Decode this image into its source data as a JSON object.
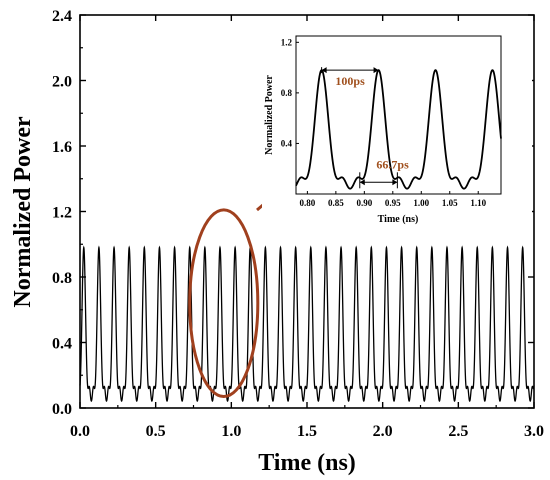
{
  "chart_data": [
    {
      "type": "line",
      "name": "main",
      "xlabel": "Time (ns)",
      "ylabel": "Normalized Power",
      "xlim": [
        0.0,
        3.0
      ],
      "ylim": [
        0.0,
        2.4
      ],
      "x_ticks": [
        "0.0",
        "0.5",
        "1.0",
        "1.5",
        "2.0",
        "2.5",
        "3.0"
      ],
      "y_ticks": [
        "0.0",
        "0.4",
        "0.8",
        "1.2",
        "1.6",
        "2.0",
        "2.4"
      ],
      "pulse_period_ns": 0.1,
      "first_peak_ns": 0.025,
      "peak_value": 0.98,
      "sidelobe_value": 0.12,
      "grid": false,
      "highlight": {
        "shape": "ellipse",
        "color": "#a0401e",
        "x_center": 0.95,
        "x_range": [
          0.73,
          1.18
        ],
        "y_range": [
          0.07,
          1.21
        ]
      }
    },
    {
      "type": "line",
      "name": "inset",
      "xlabel": "Time (ns)",
      "ylabel": "Normalized Power",
      "xlim": [
        0.78,
        1.14
      ],
      "ylim": [
        0.0,
        1.25
      ],
      "x_ticks": [
        "0.80",
        "0.85",
        "0.90",
        "0.95",
        "1.00",
        "1.05",
        "1.10"
      ],
      "y_ticks": [
        "0.4",
        "0.8",
        "1.2"
      ],
      "peaks_ns": [
        0.825,
        0.925,
        1.025,
        1.125
      ],
      "annotations": [
        {
          "text": "100ps",
          "from": 0.825,
          "to": 0.925,
          "y": 0.98
        },
        {
          "text": "66.7ps",
          "from": 0.892,
          "to": 0.958,
          "y": 0.14
        }
      ]
    }
  ],
  "colors": {
    "line": "#000000",
    "highlight": "#a0401e",
    "annotation": "#a0501e"
  }
}
